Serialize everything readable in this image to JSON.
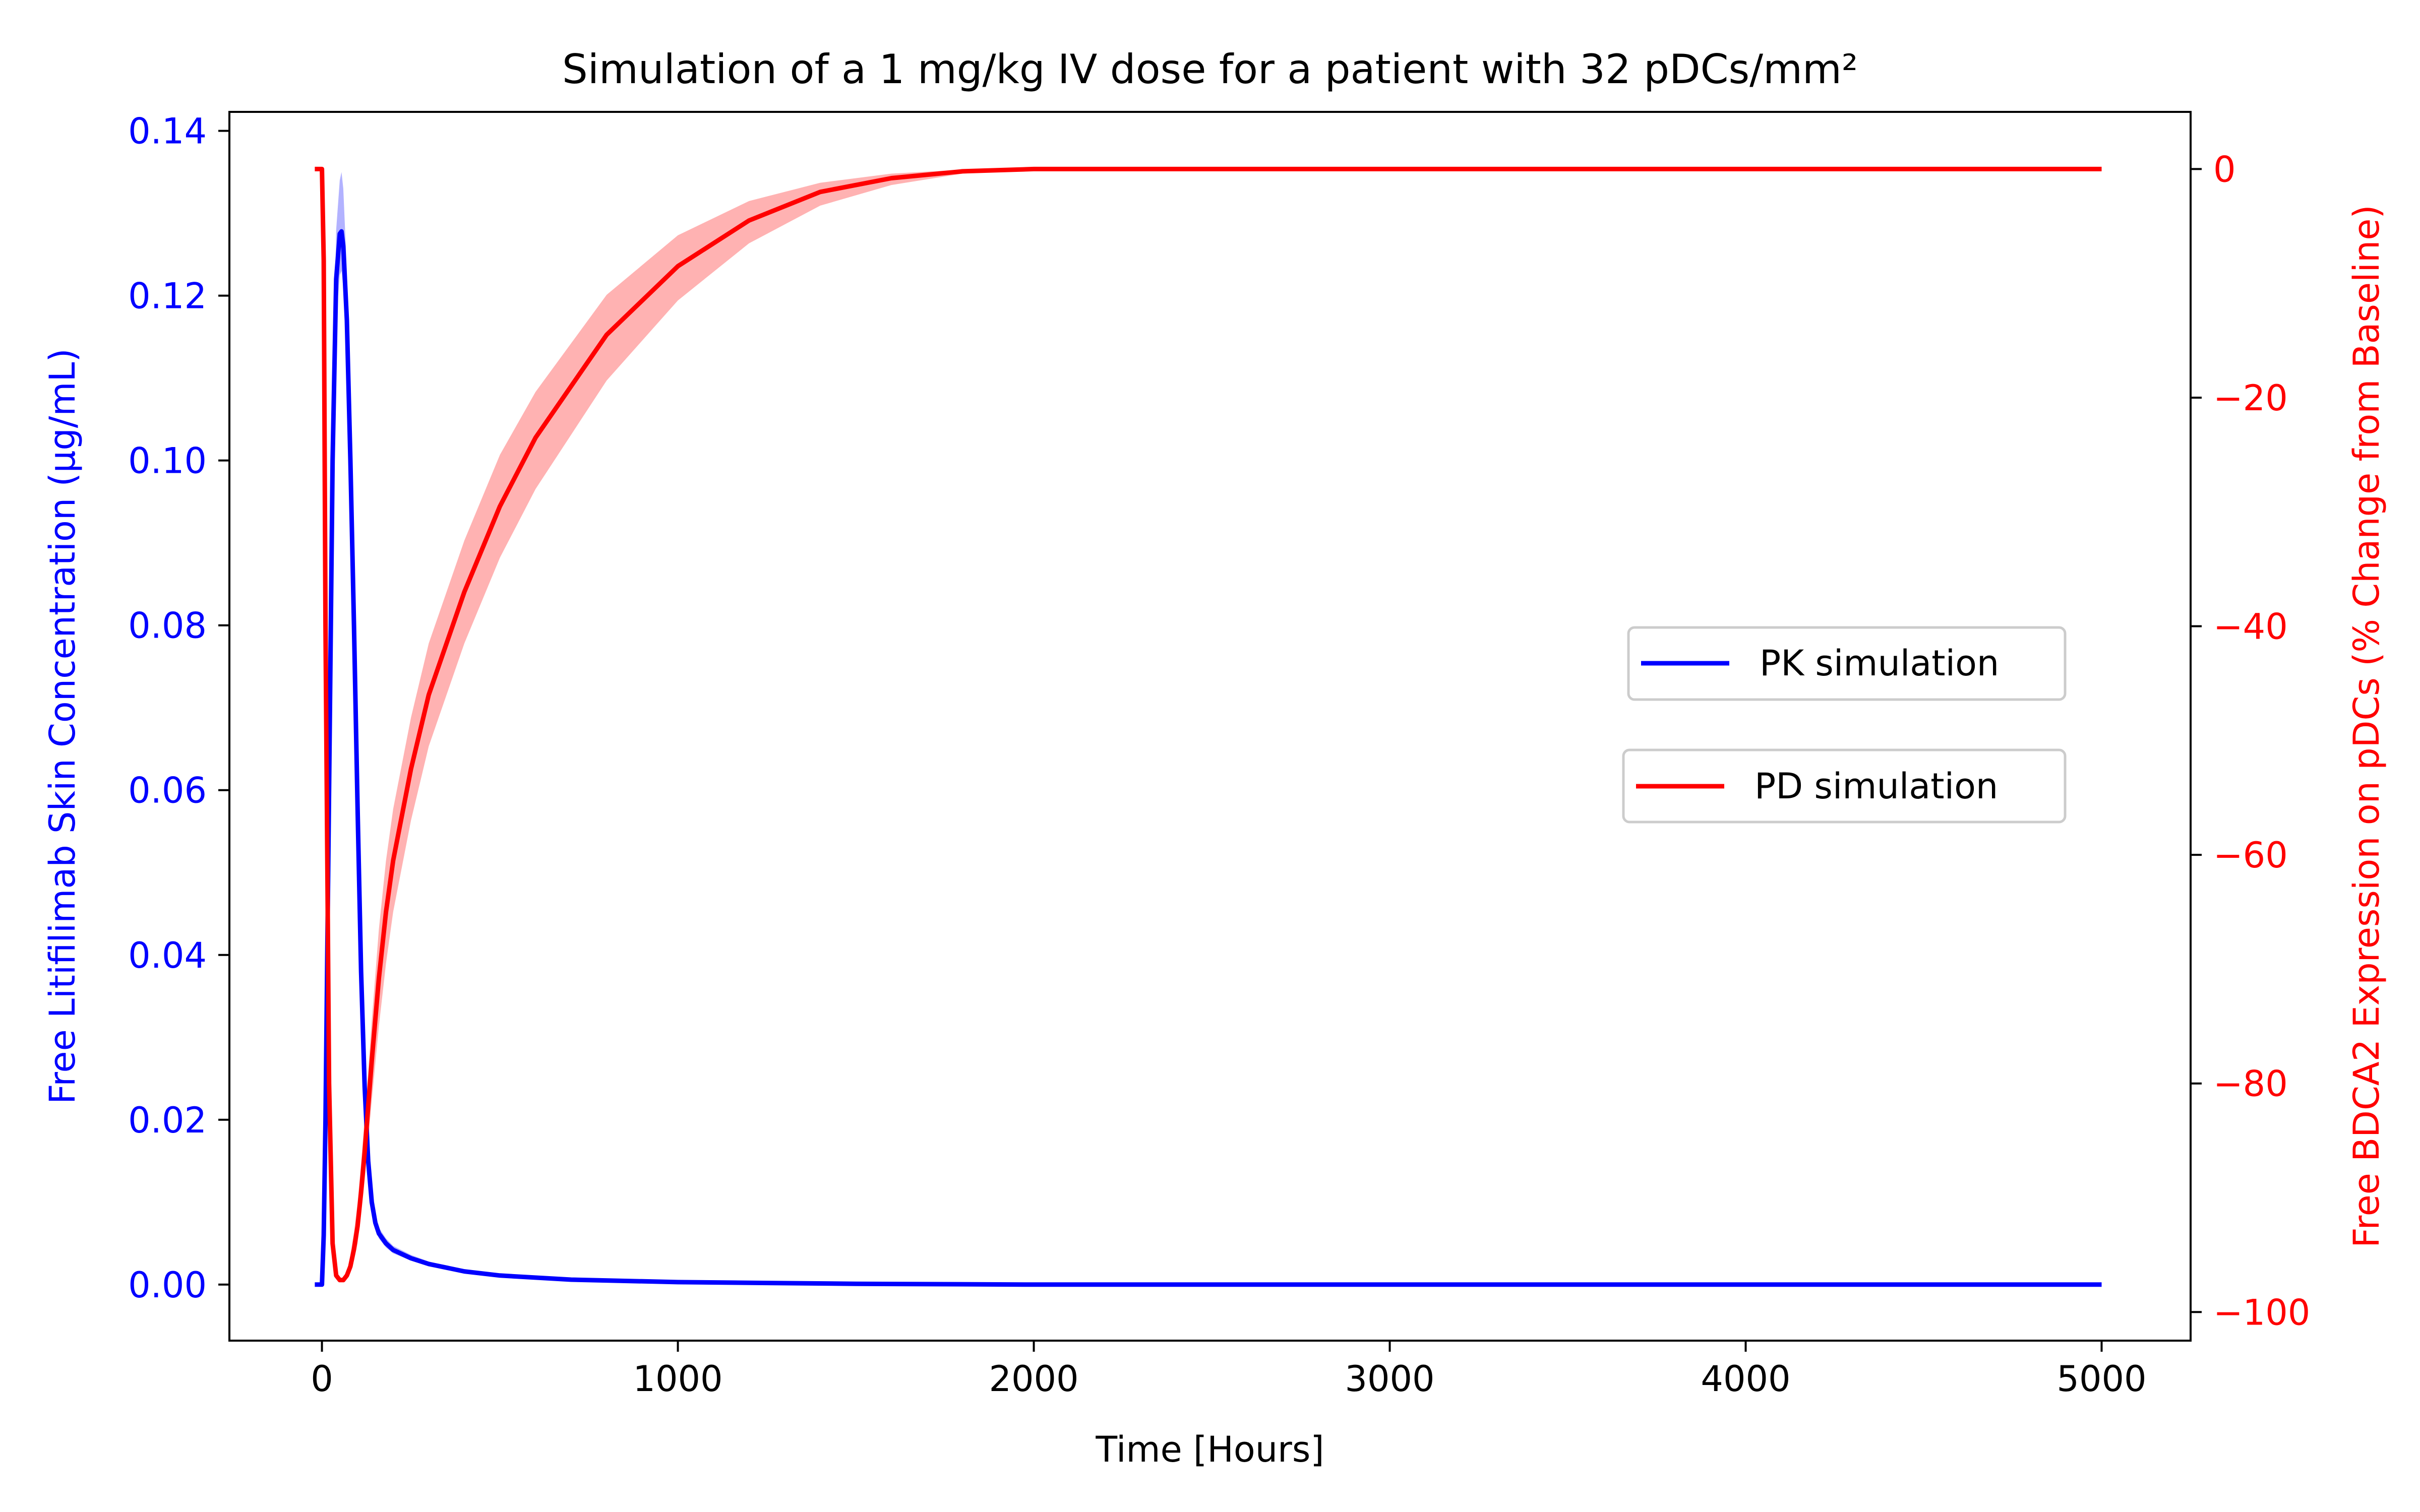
{
  "chart_data": {
    "type": "line",
    "title": "Simulation of a 1 mg/kg IV dose for a patient with 32 pDCs/mm²",
    "xlabel": "Time [Hours]",
    "ylabel_left": "Free Litifilimab Skin Concentration (µg/mL)",
    "ylabel_right": "Free BDCA2 Expression on pDCs (% Change from Baseline)",
    "xlim": [
      -260,
      5250
    ],
    "ylim_left": [
      -0.0068,
      0.1423
    ],
    "ylim_right": [
      -102.5,
      5.0
    ],
    "x_ticks": [
      0,
      1000,
      2000,
      3000,
      4000,
      5000
    ],
    "x_tick_labels": [
      "0",
      "1000",
      "2000",
      "3000",
      "4000",
      "5000"
    ],
    "y_left_ticks": [
      0.0,
      0.02,
      0.04,
      0.06,
      0.08,
      0.1,
      0.12,
      0.14
    ],
    "y_left_tick_labels": [
      "0.00",
      "0.02",
      "0.04",
      "0.06",
      "0.08",
      "0.10",
      "0.12",
      "0.14"
    ],
    "y_right_ticks": [
      0,
      -20,
      -40,
      -60,
      -80,
      -100
    ],
    "y_right_tick_labels": [
      "0",
      "−20",
      "−40",
      "−60",
      "−80",
      "−100"
    ],
    "grid": false,
    "legend": "center-right",
    "colors": {
      "pk": "#0000ff",
      "pd": "#ff0000",
      "axis": "#000000"
    },
    "series": [
      {
        "name": "PK simulation",
        "axis": "left",
        "color": "#0000ff",
        "x": [
          -20,
          0,
          5,
          10,
          20,
          30,
          40,
          50,
          55,
          60,
          70,
          80,
          90,
          100,
          110,
          120,
          130,
          140,
          150,
          160,
          180,
          200,
          250,
          300,
          400,
          500,
          700,
          1000,
          1500,
          2000,
          3000,
          4000,
          5000
        ],
        "y": [
          0.0,
          0.0,
          0.006,
          0.02,
          0.06,
          0.1,
          0.122,
          0.1275,
          0.1278,
          0.126,
          0.117,
          0.1,
          0.08,
          0.058,
          0.038,
          0.024,
          0.015,
          0.01,
          0.0075,
          0.0062,
          0.005,
          0.0042,
          0.0032,
          0.0025,
          0.0016,
          0.0011,
          0.0006,
          0.0003,
          0.0001,
          0.0,
          0.0,
          0.0,
          0.0
        ],
        "band": {
          "lower": [
            0.0,
            0.0,
            0.005,
            0.018,
            0.055,
            0.094,
            0.117,
            0.1225,
            0.123,
            0.121,
            0.112,
            0.095,
            0.075,
            0.054,
            0.035,
            0.022,
            0.0135,
            0.009,
            0.0068,
            0.0056,
            0.0045,
            0.0038,
            0.0029,
            0.0022,
            0.0014,
            0.0009,
            0.0005,
            0.00025,
            8e-05,
            0.0,
            0.0,
            0.0,
            0.0
          ],
          "upper": [
            0.0,
            0.0,
            0.007,
            0.022,
            0.065,
            0.106,
            0.128,
            0.134,
            0.135,
            0.133,
            0.123,
            0.105,
            0.085,
            0.062,
            0.041,
            0.026,
            0.0165,
            0.011,
            0.0083,
            0.0069,
            0.0056,
            0.0047,
            0.0036,
            0.0028,
            0.0018,
            0.0013,
            0.0007,
            0.00035,
            0.00012,
            0.0,
            0.0,
            0.0,
            0.0
          ]
        }
      },
      {
        "name": "PD simulation",
        "axis": "right",
        "color": "#ff0000",
        "x": [
          -20,
          0,
          5,
          10,
          20,
          30,
          40,
          50,
          60,
          70,
          80,
          90,
          100,
          110,
          120,
          130,
          140,
          160,
          180,
          200,
          250,
          300,
          400,
          500,
          600,
          800,
          1000,
          1200,
          1400,
          1600,
          1800,
          2000,
          2200,
          3000,
          4000,
          5000
        ],
        "y": [
          0.0,
          0.0,
          -8,
          -40,
          -80,
          -94,
          -96.8,
          -97.2,
          -97.2,
          -96.8,
          -96.0,
          -94.5,
          -92.5,
          -89.5,
          -86.0,
          -82.0,
          -78.0,
          -70.8,
          -65.0,
          -60.5,
          -52.5,
          -46.0,
          -37.0,
          -29.5,
          -23.5,
          -14.5,
          -8.5,
          -4.5,
          -2.0,
          -0.8,
          -0.2,
          0.0,
          0.0,
          0.0,
          0.0,
          0.0
        ],
        "band": {
          "lower": [
            0.0,
            0.0,
            -8,
            -40,
            -80,
            -94,
            -96.8,
            -97.2,
            -97.2,
            -97.0,
            -96.5,
            -95.5,
            -94.0,
            -91.5,
            -88.5,
            -85.0,
            -81.5,
            -75.0,
            -69.5,
            -65.0,
            -57.0,
            -50.5,
            -41.5,
            -34.0,
            -28.0,
            -18.5,
            -11.5,
            -6.5,
            -3.2,
            -1.4,
            -0.4,
            -0.05,
            0.0,
            0.0,
            0.0,
            0.0
          ],
          "upper": [
            0.0,
            0.0,
            -8,
            -40,
            -80,
            -94,
            -96.8,
            -97.2,
            -97.2,
            -96.5,
            -95.0,
            -93.0,
            -90.5,
            -87.0,
            -83.0,
            -79.0,
            -74.5,
            -66.5,
            -60.5,
            -56.0,
            -48.0,
            -41.5,
            -32.5,
            -25.0,
            -19.5,
            -11.0,
            -5.8,
            -2.8,
            -1.2,
            -0.4,
            -0.05,
            0.0,
            0.0,
            0.0,
            0.0,
            0.0
          ]
        }
      }
    ]
  }
}
